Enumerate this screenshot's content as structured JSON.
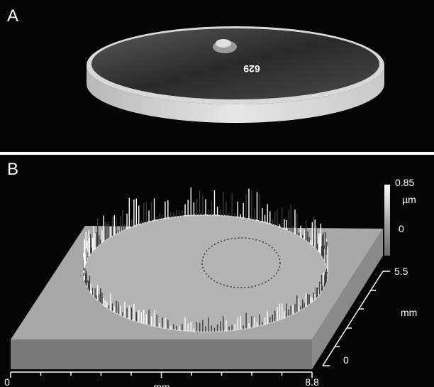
{
  "panels": [
    {
      "label": "A",
      "engraving": "629"
    },
    {
      "label": "B",
      "color_scale": {
        "ticks": [
          0.85,
          0
        ],
        "unit": "µm"
      },
      "y_axis": {
        "ticks": [
          5.5,
          0
        ],
        "label": "mm"
      },
      "x_axis": {
        "ticks": [
          0,
          8.8
        ],
        "label": "mm"
      }
    }
  ]
}
